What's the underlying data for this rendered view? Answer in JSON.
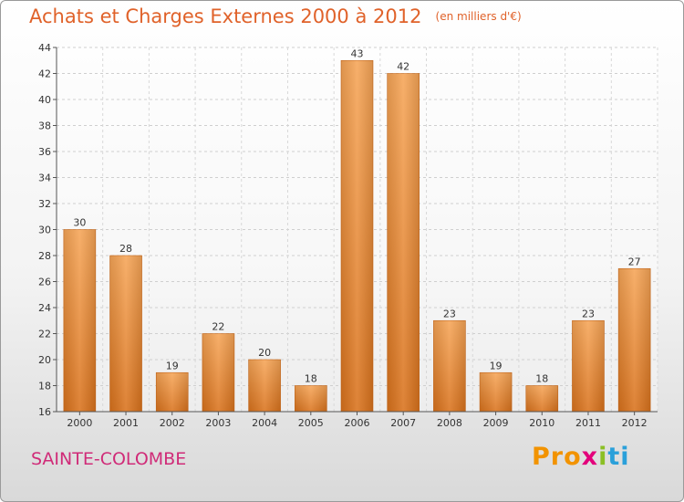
{
  "chart_data": {
    "type": "bar",
    "title": "Achats et Charges Externes 2000 à 2012",
    "subtitle": "(en milliers d'€)",
    "categories": [
      "2000",
      "2001",
      "2002",
      "2003",
      "2004",
      "2005",
      "2006",
      "2007",
      "2008",
      "2009",
      "2010",
      "2011",
      "2012"
    ],
    "values": [
      30,
      28,
      19,
      22,
      20,
      18,
      43,
      42,
      23,
      19,
      18,
      23,
      27
    ],
    "ylim": [
      16,
      44
    ],
    "yticks": [
      16,
      18,
      20,
      22,
      24,
      26,
      28,
      30,
      32,
      34,
      36,
      38,
      40,
      42,
      44
    ],
    "xlabel": "",
    "ylabel": "",
    "grid": true,
    "bar_color": "#f0953e"
  },
  "footer": {
    "place_name": "SAINTE-COLOMBE",
    "logo": {
      "p1": "Pro",
      "p2": "x",
      "p3": "i",
      "p4": "ti"
    }
  }
}
